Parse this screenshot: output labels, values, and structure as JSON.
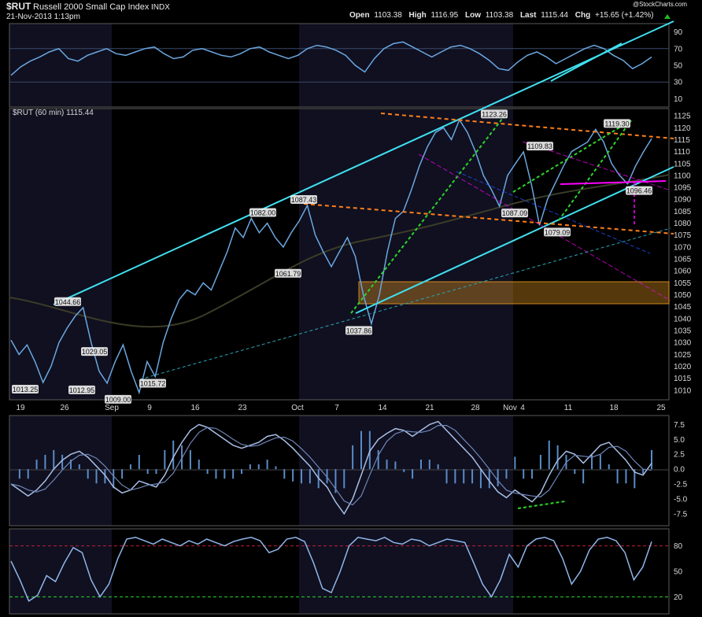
{
  "header": {
    "symbol": "$RUT",
    "name": "Russell 2000 Small Cap Index",
    "exchange": "INDX",
    "datetime": "21-Nov-2013 1:13pm",
    "open_label": "Open",
    "open": "1103.38",
    "high_label": "High",
    "high": "1116.95",
    "low_label": "Low",
    "low": "1103.38",
    "last_label": "Last",
    "last": "1115.44",
    "chg_label": "Chg",
    "chg": "+15.65 (+1.42%)",
    "copyright": "@StockCharts.com"
  },
  "colors": {
    "background": "#000000",
    "panel_border": "#5a5a5a",
    "shade": "#101020",
    "price": "#6aa7e0",
    "channel": "#40e0f0",
    "resistance": "#ff7f1a",
    "uptrend": "#2bd62b",
    "support": "#ff00ff",
    "zone": "#f4a020",
    "up_arrow": "#22bb22"
  },
  "chart_data": [
    {
      "type": "line",
      "panel": "rsi-top",
      "y_tick_labels": [
        "90",
        "70",
        "50",
        "30",
        "10"
      ],
      "ylim": [
        0,
        100
      ],
      "reference_lines": [
        70,
        30
      ],
      "values": [
        38,
        48,
        55,
        60,
        66,
        70,
        58,
        55,
        62,
        66,
        70,
        64,
        62,
        66,
        70,
        72,
        64,
        58,
        60,
        68,
        70,
        66,
        62,
        60,
        64,
        70,
        72,
        66,
        62,
        58,
        62,
        70,
        74,
        72,
        68,
        62,
        50,
        42,
        58,
        70,
        76,
        78,
        72,
        66,
        60,
        66,
        72,
        74,
        70,
        64,
        56,
        46,
        44,
        54,
        62,
        66,
        60,
        52,
        58,
        64,
        70,
        74,
        70,
        62,
        56,
        46,
        52,
        60
      ]
    },
    {
      "type": "line",
      "panel": "price",
      "title": "$RUT (60 min) 1115.44",
      "x_tick_labels": [
        "19",
        "26",
        "Sep",
        "9",
        "16",
        "23",
        "Oct",
        "7",
        "14",
        "21",
        "28",
        "Nov",
        "4",
        "11",
        "18",
        "25"
      ],
      "y_tick_labels": [
        "1125",
        "1120",
        "1115",
        "1110",
        "1105",
        "1100",
        "1095",
        "1090",
        "1085",
        "1080",
        "1075",
        "1070",
        "1065",
        "1060",
        "1055",
        "1050",
        "1045",
        "1040",
        "1035",
        "1030",
        "1025",
        "1020",
        "1015",
        "1010"
      ],
      "ylim": [
        1006,
        1128
      ],
      "series": [
        {
          "values": [
            1031,
            1025,
            1029,
            1022,
            1013.25,
            1020,
            1030,
            1036,
            1041,
            1044.66,
            1030,
            1018,
            1012.95,
            1022,
            1029.05,
            1018,
            1009,
            1022,
            1015.72,
            1030,
            1040,
            1048,
            1052,
            1050,
            1055,
            1052,
            1060,
            1068,
            1078,
            1074,
            1082,
            1076,
            1080,
            1074,
            1070,
            1076,
            1081,
            1087.43,
            1075,
            1068,
            1061.79,
            1068,
            1074,
            1066,
            1050,
            1037.86,
            1050,
            1068,
            1082,
            1085,
            1094,
            1104,
            1112,
            1118,
            1120,
            1115,
            1123.26,
            1118,
            1110,
            1100,
            1094,
            1087.09,
            1100,
            1105,
            1109.83,
            1096,
            1079.09,
            1090,
            1097,
            1104,
            1110,
            1112,
            1114,
            1119.3,
            1114,
            1105,
            1100,
            1096.46,
            1104,
            1110,
            1115.44
          ]
        }
      ],
      "annotations": [
        {
          "label": "1044.66",
          "value": 1044.66
        },
        {
          "label": "1029.05",
          "value": 1029.05
        },
        {
          "label": "1013.25",
          "value": 1013.25
        },
        {
          "label": "1012.95",
          "value": 1012.95
        },
        {
          "label": "1009.00",
          "value": 1009.0
        },
        {
          "label": "1015.72",
          "value": 1015.72
        },
        {
          "label": "1082.00",
          "value": 1082.0
        },
        {
          "label": "1087.43",
          "value": 1087.43
        },
        {
          "label": "1061.79",
          "value": 1061.79
        },
        {
          "label": "1037.86",
          "value": 1037.86
        },
        {
          "label": "1123.26",
          "value": 1123.26
        },
        {
          "label": "1109.83",
          "value": 1109.83
        },
        {
          "label": "1087.09",
          "value": 1087.09
        },
        {
          "label": "1079.09",
          "value": 1079.09
        },
        {
          "label": "1119.30",
          "value": 1119.3
        },
        {
          "label": "1096.46",
          "value": 1096.46
        }
      ],
      "zone": {
        "from": 1043,
        "to": 1052
      }
    },
    {
      "type": "line",
      "panel": "macd",
      "y_tick_labels": [
        "7.5",
        "5.0",
        "2.5",
        "0.0",
        "-2.5",
        "-5.0",
        "-7.5"
      ],
      "ylim": [
        -9.5,
        9
      ],
      "values": [
        -2.5,
        -3.5,
        -4.5,
        -3.5,
        -2,
        0,
        1.5,
        2.5,
        3,
        2,
        0.5,
        -1,
        -3,
        -4,
        -3.5,
        -2,
        -2.5,
        -3,
        -1,
        2,
        4.5,
        6.5,
        7.5,
        7,
        6,
        5,
        4,
        3.5,
        4,
        4.5,
        5.5,
        5.8,
        4.8,
        3.5,
        2,
        0.5,
        -1.5,
        -3,
        -5.5,
        -7.5,
        -5,
        -1,
        3,
        5,
        6,
        6.8,
        6.5,
        5.5,
        6.5,
        7.5,
        8,
        6.5,
        5,
        3.5,
        2,
        0,
        -2,
        -3.8,
        -4.8,
        -3.5,
        -4.5,
        -5.5,
        -4,
        -1,
        1.5,
        3,
        2.5,
        1,
        2.5,
        4,
        4.5,
        3,
        1.5,
        -0.5,
        -1,
        1
      ]
    },
    {
      "type": "line",
      "panel": "stochastic",
      "y_tick_labels": [
        "80",
        "50",
        "20"
      ],
      "ylim": [
        0,
        100
      ],
      "reference_lines": [
        80,
        20
      ],
      "values": [
        62,
        40,
        15,
        22,
        45,
        38,
        60,
        78,
        72,
        40,
        20,
        35,
        65,
        88,
        90,
        86,
        82,
        88,
        84,
        80,
        86,
        82,
        88,
        84,
        80,
        85,
        88,
        90,
        86,
        72,
        76,
        88,
        90,
        85,
        60,
        30,
        25,
        50,
        80,
        90,
        88,
        86,
        90,
        84,
        82,
        88,
        86,
        80,
        84,
        88,
        86,
        84,
        60,
        35,
        20,
        40,
        70,
        55,
        80,
        88,
        90,
        86,
        65,
        35,
        50,
        75,
        88,
        90,
        86,
        72,
        40,
        55,
        85
      ]
    }
  ]
}
